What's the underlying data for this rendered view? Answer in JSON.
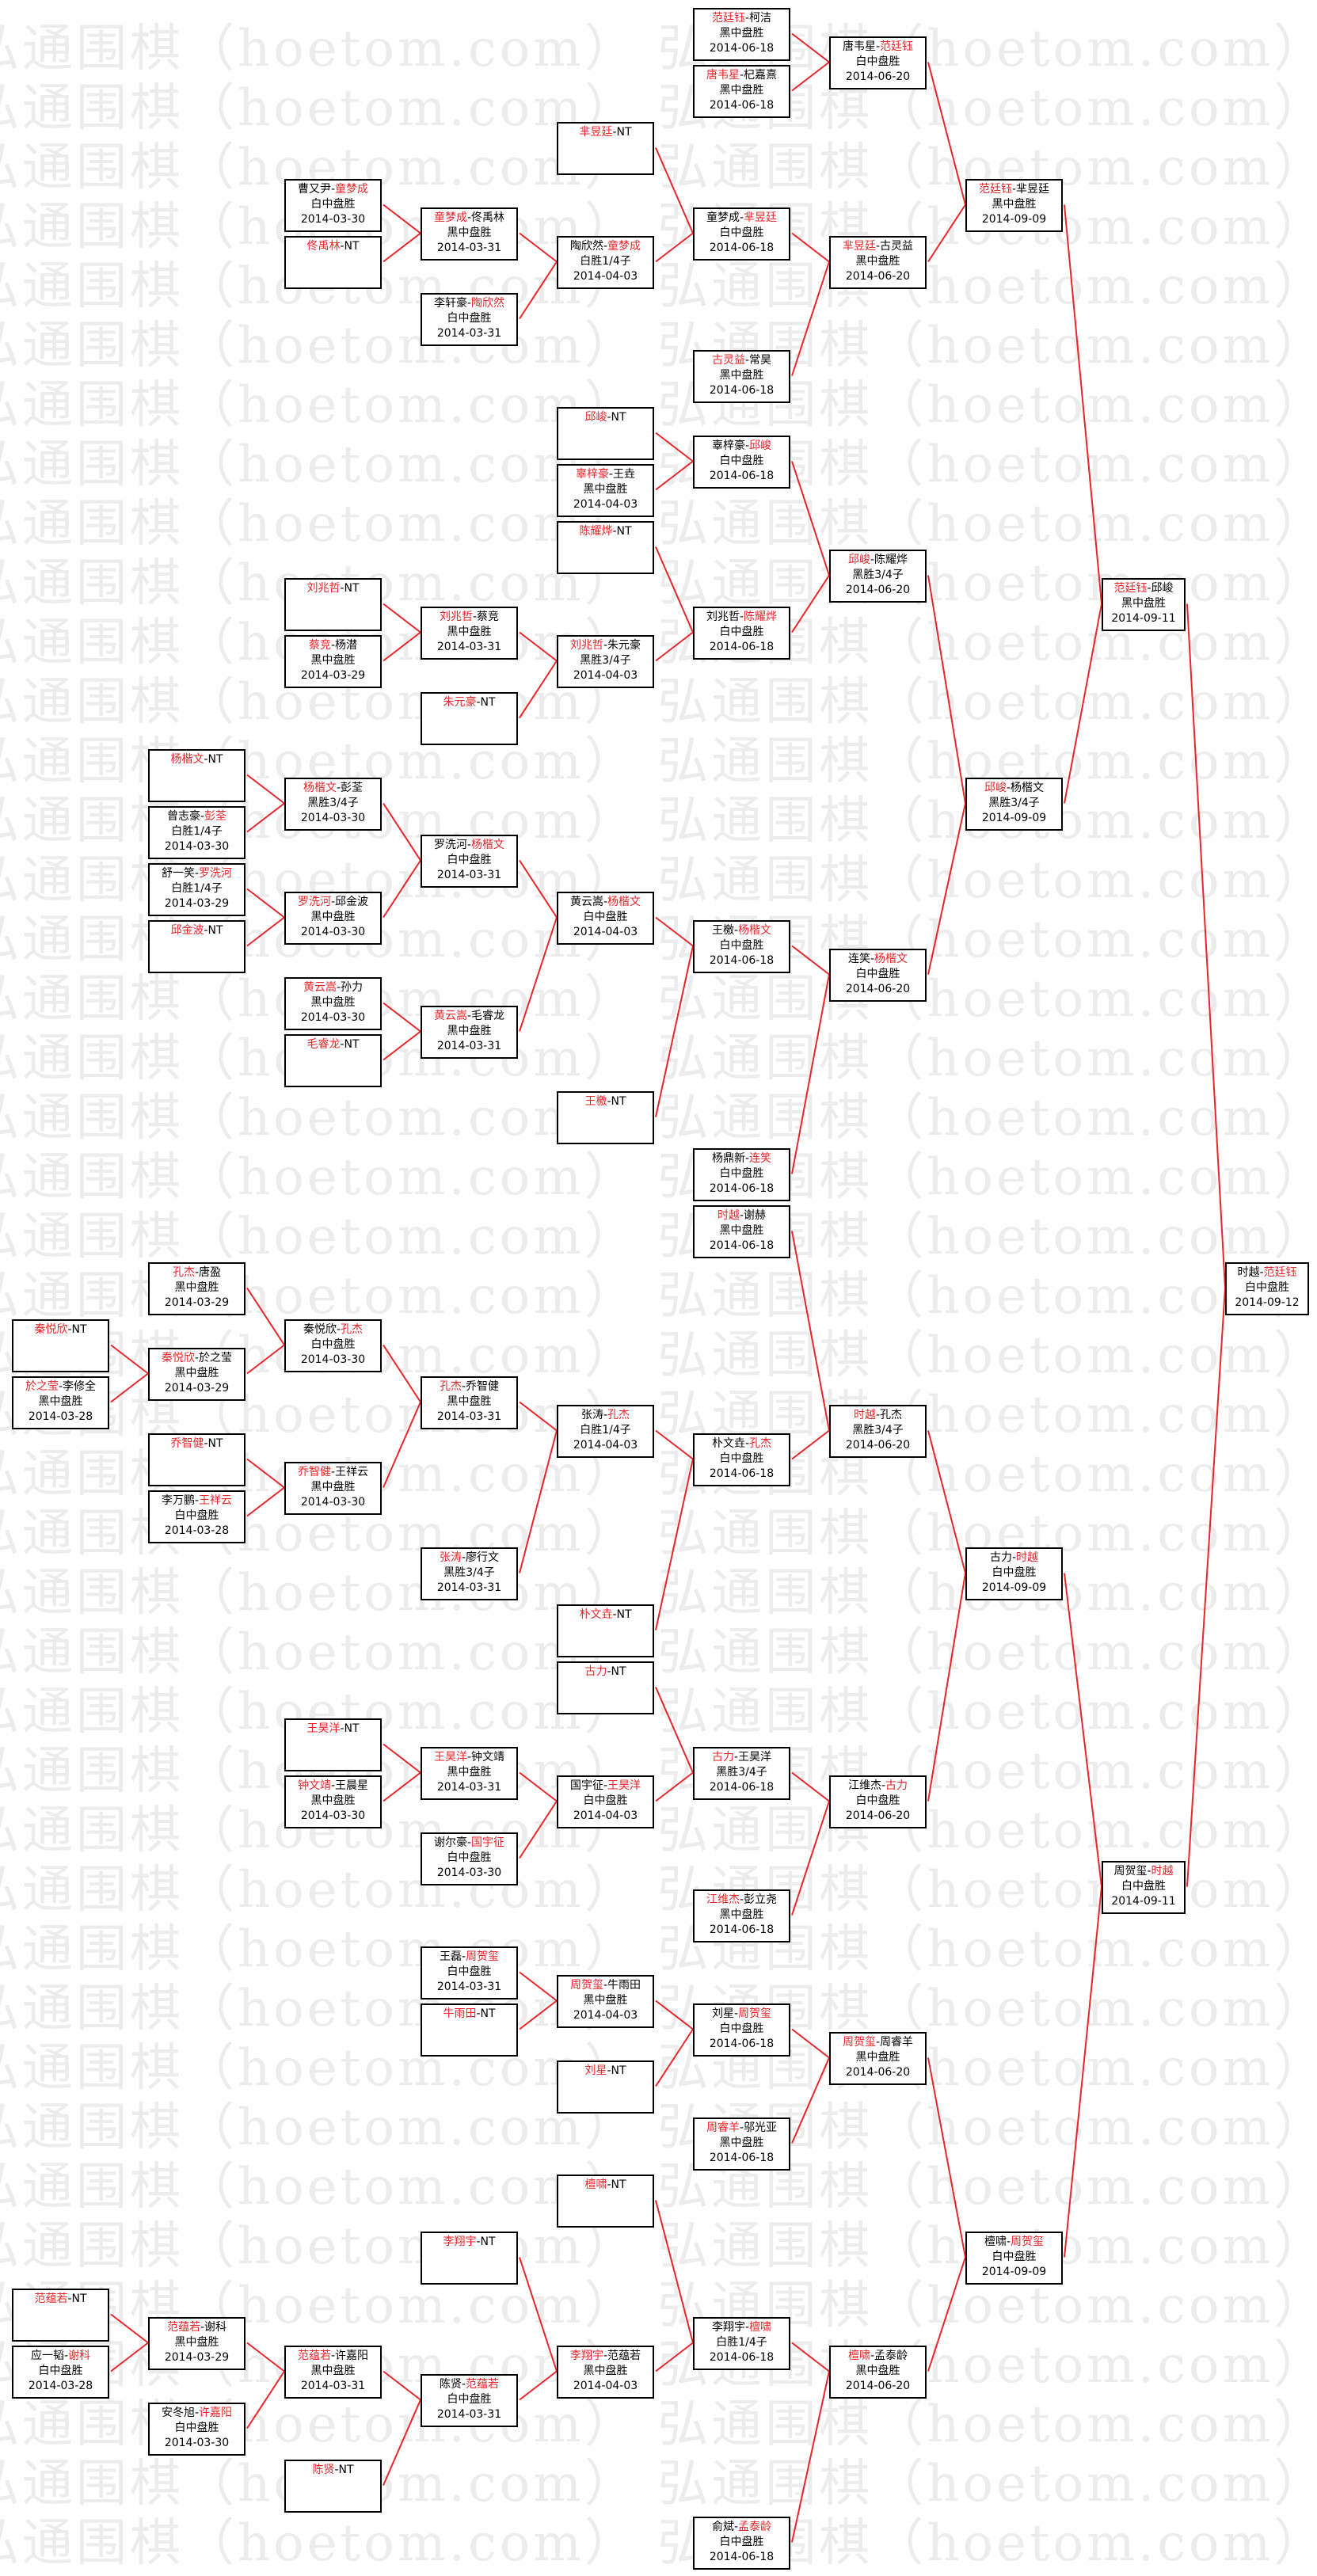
{
  "watermark": "弘通围棋（hoetom.com）",
  "colors": {
    "winner": "#e8262a",
    "connector": "#e8262a",
    "border": "#000000"
  },
  "matches": [
    {
      "players": [
        "范廷钰",
        "柯洁"
      ],
      "winner": 0,
      "result": "黑中盘胜",
      "date": "2014-06-18"
    },
    {
      "players": [
        "唐韦星",
        "杞嘉熹"
      ],
      "winner": 0,
      "result": "黑中盘胜",
      "date": "2014-06-18"
    },
    {
      "players": [
        "唐韦星",
        "范廷钰"
      ],
      "winner": 1,
      "result": "白中盘胜",
      "date": "2014-06-20"
    },
    {
      "players": [
        "芈昱廷",
        "NT"
      ],
      "winner": 0
    },
    {
      "players": [
        "曹又尹",
        "童梦成"
      ],
      "winner": 1,
      "result": "白中盘胜",
      "date": "2014-03-30"
    },
    {
      "players": [
        "佟禹林",
        "NT"
      ],
      "winner": 0
    },
    {
      "players": [
        "童梦成",
        "佟禹林"
      ],
      "winner": 0,
      "result": "黑中盘胜",
      "date": "2014-03-31"
    },
    {
      "players": [
        "李轩豪",
        "陶欣然"
      ],
      "winner": 1,
      "result": "白中盘胜",
      "date": "2014-03-31"
    },
    {
      "players": [
        "陶欣然",
        "童梦成"
      ],
      "winner": 1,
      "result": "白胜1/4子",
      "date": "2014-04-03"
    },
    {
      "players": [
        "童梦成",
        "芈昱廷"
      ],
      "winner": 1,
      "result": "白中盘胜",
      "date": "2014-06-18"
    },
    {
      "players": [
        "芈昱廷",
        "古灵益"
      ],
      "winner": 0,
      "result": "黑中盘胜",
      "date": "2014-06-20"
    },
    {
      "players": [
        "范廷钰",
        "芈昱廷"
      ],
      "winner": 0,
      "result": "黑中盘胜",
      "date": "2014-09-09"
    },
    {
      "players": [
        "古灵益",
        "常昊"
      ],
      "winner": 0,
      "result": "黑中盘胜",
      "date": "2014-06-18"
    },
    {
      "players": [
        "邱峻",
        "NT"
      ],
      "winner": 0
    },
    {
      "players": [
        "辜梓豪",
        "王垚"
      ],
      "winner": 0,
      "result": "黑中盘胜",
      "date": "2014-04-03"
    },
    {
      "players": [
        "陈耀烨",
        "NT"
      ],
      "winner": 0
    },
    {
      "players": [
        "辜梓豪",
        "邱峻"
      ],
      "winner": 1,
      "result": "白中盘胜",
      "date": "2014-06-18"
    },
    {
      "players": [
        "邱峻",
        "陈耀烨"
      ],
      "winner": 0,
      "result": "黑胜3/4子",
      "date": "2014-06-20"
    },
    {
      "players": [
        "刘兆哲",
        "NT"
      ],
      "winner": 0
    },
    {
      "players": [
        "刘兆哲",
        "蔡竞"
      ],
      "winner": 0,
      "result": "黑中盘胜",
      "date": "2014-03-31"
    },
    {
      "players": [
        "蔡竞",
        "杨潜"
      ],
      "winner": 0,
      "result": "黑中盘胜",
      "date": "2014-03-29"
    },
    {
      "players": [
        "刘兆哲",
        "朱元豪"
      ],
      "winner": 0,
      "result": "黑胜3/4子",
      "date": "2014-04-03"
    },
    {
      "players": [
        "朱元豪",
        "NT"
      ],
      "winner": 0
    },
    {
      "players": [
        "刘兆哲",
        "陈耀烨"
      ],
      "winner": 1,
      "result": "白中盘胜",
      "date": "2014-06-18"
    },
    {
      "players": [
        "范廷钰",
        "邱峻"
      ],
      "winner": 0,
      "result": "黑中盘胜",
      "date": "2014-09-11"
    },
    {
      "players": [
        "杨楷文",
        "NT"
      ],
      "winner": 0
    },
    {
      "players": [
        "曾志豪",
        "彭荃"
      ],
      "winner": 1,
      "result": "白胜1/4子",
      "date": "2014-03-30"
    },
    {
      "players": [
        "杨楷文",
        "彭荃"
      ],
      "winner": 0,
      "result": "黑胜3/4子",
      "date": "2014-03-30"
    },
    {
      "players": [
        "舒一笑",
        "罗洗河"
      ],
      "winner": 1,
      "result": "白胜1/4子",
      "date": "2014-03-29"
    },
    {
      "players": [
        "邱金波",
        "NT"
      ],
      "winner": 0
    },
    {
      "players": [
        "罗洗河",
        "邱金波"
      ],
      "winner": 0,
      "result": "黑中盘胜",
      "date": "2014-03-30"
    },
    {
      "players": [
        "罗洗河",
        "杨楷文"
      ],
      "winner": 1,
      "result": "白中盘胜",
      "date": "2014-03-31"
    },
    {
      "players": [
        "黄云嵩",
        "孙力"
      ],
      "winner": 0,
      "result": "黑中盘胜",
      "date": "2014-03-30"
    },
    {
      "players": [
        "毛睿龙",
        "NT"
      ],
      "winner": 0
    },
    {
      "players": [
        "黄云嵩",
        "毛睿龙"
      ],
      "winner": 0,
      "result": "黑中盘胜",
      "date": "2014-03-31"
    },
    {
      "players": [
        "黄云嵩",
        "杨楷文"
      ],
      "winner": 1,
      "result": "白中盘胜",
      "date": "2014-04-03"
    },
    {
      "players": [
        "王檄",
        "NT"
      ],
      "winner": 0
    },
    {
      "players": [
        "王檄",
        "杨楷文"
      ],
      "winner": 1,
      "result": "白中盘胜",
      "date": "2014-06-18"
    },
    {
      "players": [
        "杨鼎新",
        "连笑"
      ],
      "winner": 1,
      "result": "白中盘胜",
      "date": "2014-06-18"
    },
    {
      "players": [
        "连笑",
        "杨楷文"
      ],
      "winner": 1,
      "result": "白中盘胜",
      "date": "2014-06-20"
    },
    {
      "players": [
        "邱峻",
        "杨楷文"
      ],
      "winner": 0,
      "result": "黑胜3/4子",
      "date": "2014-09-09"
    },
    {
      "players": [
        "时越",
        "谢赫"
      ],
      "winner": 0,
      "result": "黑中盘胜",
      "date": "2014-06-18"
    },
    {
      "players": [
        "时越",
        "范廷钰"
      ],
      "winner": 1,
      "result": "白中盘胜",
      "date": "2014-09-12"
    },
    {
      "players": [
        "孔杰",
        "唐盈"
      ],
      "winner": 0,
      "result": "黑中盘胜",
      "date": "2014-03-29"
    },
    {
      "players": [
        "秦悦欣",
        "NT"
      ],
      "winner": 0
    },
    {
      "players": [
        "於之莹",
        "李修全"
      ],
      "winner": 0,
      "result": "黑中盘胜",
      "date": "2014-03-28"
    },
    {
      "players": [
        "秦悦欣",
        "於之莹"
      ],
      "winner": 0,
      "result": "黑中盘胜",
      "date": "2014-03-29"
    },
    {
      "players": [
        "秦悦欣",
        "孔杰"
      ],
      "winner": 1,
      "result": "白中盘胜",
      "date": "2014-03-30"
    },
    {
      "players": [
        "乔智健",
        "NT"
      ],
      "winner": 0
    },
    {
      "players": [
        "李万鹏",
        "王祥云"
      ],
      "winner": 1,
      "result": "白中盘胜",
      "date": "2014-03-28"
    },
    {
      "players": [
        "乔智健",
        "王祥云"
      ],
      "winner": 0,
      "result": "黑中盘胜",
      "date": "2014-03-30"
    },
    {
      "players": [
        "孔杰",
        "乔智健"
      ],
      "winner": 0,
      "result": "黑中盘胜",
      "date": "2014-03-31"
    },
    {
      "players": [
        "张涛",
        "廖行文"
      ],
      "winner": 0,
      "result": "黑胜3/4子",
      "date": "2014-03-31"
    },
    {
      "players": [
        "张涛",
        "孔杰"
      ],
      "winner": 1,
      "result": "白胜1/4子",
      "date": "2014-04-03"
    },
    {
      "players": [
        "朴文垚",
        "NT"
      ],
      "winner": 0
    },
    {
      "players": [
        "朴文垚",
        "孔杰"
      ],
      "winner": 1,
      "result": "白中盘胜",
      "date": "2014-06-18"
    },
    {
      "players": [
        "时越",
        "孔杰"
      ],
      "winner": 0,
      "result": "黑胜3/4子",
      "date": "2014-06-20"
    },
    {
      "players": [
        "古力",
        "NT"
      ],
      "winner": 0
    },
    {
      "players": [
        "王昊洋",
        "NT"
      ],
      "winner": 0
    },
    {
      "players": [
        "钟文靖",
        "王晨星"
      ],
      "winner": 0,
      "result": "黑中盘胜",
      "date": "2014-03-30"
    },
    {
      "players": [
        "王昊洋",
        "钟文靖"
      ],
      "winner": 0,
      "result": "黑中盘胜",
      "date": "2014-03-31"
    },
    {
      "players": [
        "谢尔豪",
        "国宇征"
      ],
      "winner": 1,
      "result": "白中盘胜",
      "date": "2014-03-30"
    },
    {
      "players": [
        "国宇征",
        "王昊洋"
      ],
      "winner": 1,
      "result": "白中盘胜",
      "date": "2014-04-03"
    },
    {
      "players": [
        "古力",
        "王昊洋"
      ],
      "winner": 0,
      "result": "黑胜3/4子",
      "date": "2014-06-18"
    },
    {
      "players": [
        "江维杰",
        "彭立尧"
      ],
      "winner": 0,
      "result": "黑中盘胜",
      "date": "2014-06-18"
    },
    {
      "players": [
        "江维杰",
        "古力"
      ],
      "winner": 1,
      "result": "白中盘胜",
      "date": "2014-06-20"
    },
    {
      "players": [
        "古力",
        "时越"
      ],
      "winner": 1,
      "result": "白中盘胜",
      "date": "2014-09-09"
    },
    {
      "players": [
        "周贺玺",
        "时越"
      ],
      "winner": 1,
      "result": "白中盘胜",
      "date": "2014-09-11"
    },
    {
      "players": [
        "王磊",
        "周贺玺"
      ],
      "winner": 1,
      "result": "白中盘胜",
      "date": "2014-03-31"
    },
    {
      "players": [
        "牛雨田",
        "NT"
      ],
      "winner": 0
    },
    {
      "players": [
        "周贺玺",
        "牛雨田"
      ],
      "winner": 0,
      "result": "黑中盘胜",
      "date": "2014-04-03"
    },
    {
      "players": [
        "刘星",
        "NT"
      ],
      "winner": 0
    },
    {
      "players": [
        "刘星",
        "周贺玺"
      ],
      "winner": 1,
      "result": "白中盘胜",
      "date": "2014-06-18"
    },
    {
      "players": [
        "周睿羊",
        "邬光亚"
      ],
      "winner": 0,
      "result": "黑中盘胜",
      "date": "2014-06-18"
    },
    {
      "players": [
        "周贺玺",
        "周睿羊"
      ],
      "winner": 0,
      "result": "黑中盘胜",
      "date": "2014-06-20"
    },
    {
      "players": [
        "檀啸",
        "NT"
      ],
      "winner": 0
    },
    {
      "players": [
        "李翔宇",
        "NT"
      ],
      "winner": 0
    },
    {
      "players": [
        "范蕴若",
        "NT"
      ],
      "winner": 0
    },
    {
      "players": [
        "应一韬",
        "谢科"
      ],
      "winner": 1,
      "result": "白中盘胜",
      "date": "2014-03-28"
    },
    {
      "players": [
        "范蕴若",
        "谢科"
      ],
      "winner": 0,
      "result": "黑中盘胜",
      "date": "2014-03-29"
    },
    {
      "players": [
        "安冬旭",
        "许嘉阳"
      ],
      "winner": 1,
      "result": "白中盘胜",
      "date": "2014-03-30"
    },
    {
      "players": [
        "范蕴若",
        "许嘉阳"
      ],
      "winner": 0,
      "result": "黑中盘胜",
      "date": "2014-03-31"
    },
    {
      "players": [
        "陈贤",
        "NT"
      ],
      "winner": 0
    },
    {
      "players": [
        "陈贤",
        "范蕴若"
      ],
      "winner": 1,
      "result": "白中盘胜",
      "date": "2014-03-31"
    },
    {
      "players": [
        "李翔宇",
        "范蕴若"
      ],
      "winner": 0,
      "result": "黑中盘胜",
      "date": "2014-04-03"
    },
    {
      "players": [
        "李翔宇",
        "檀啸"
      ],
      "winner": 1,
      "result": "白胜1/4子",
      "date": "2014-06-18"
    },
    {
      "players": [
        "俞斌",
        "孟泰龄"
      ],
      "winner": 1,
      "result": "白中盘胜",
      "date": "2014-06-18"
    },
    {
      "players": [
        "檀啸",
        "孟泰龄"
      ],
      "winner": 0,
      "result": "黑中盘胜",
      "date": "2014-06-20"
    },
    {
      "players": [
        "檀啸",
        "周贺玺"
      ],
      "winner": 1,
      "result": "白中盘胜",
      "date": "2014-09-09"
    }
  ]
}
